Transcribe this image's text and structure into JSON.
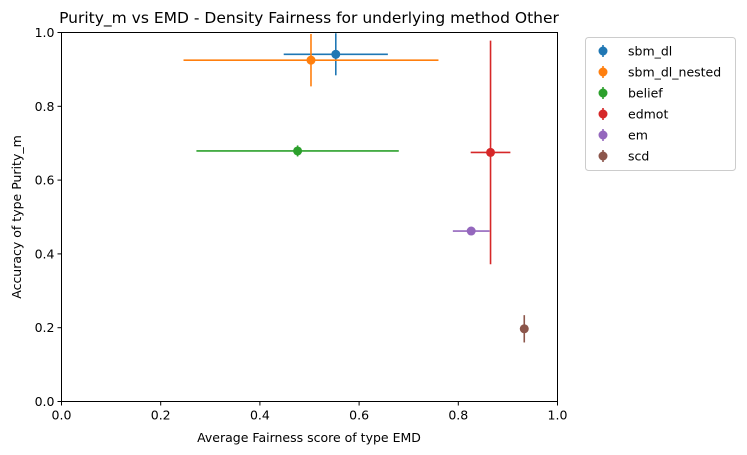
{
  "chart_data": {
    "type": "scatter",
    "title": "Purity_m vs EMD - Density Fairness for underlying method Other",
    "xlabel": "Average Fairness score of type EMD",
    "ylabel": "Accuracy of type Purity_m",
    "xlim": [
      0.0,
      1.0
    ],
    "ylim": [
      0.0,
      1.0
    ],
    "xticks": [
      "0.0",
      "0.2",
      "0.4",
      "0.6",
      "0.8",
      "1.0"
    ],
    "yticks": [
      "0.0",
      "0.2",
      "0.4",
      "0.6",
      "0.8",
      "1.0"
    ],
    "grid": false,
    "legend_position": "outside-upper-right",
    "series": [
      {
        "name": "sbm_dl",
        "color": "#1f77b4",
        "x": 0.553,
        "y": 0.941,
        "xerr": 0.105,
        "yerr": 0.057
      },
      {
        "name": "sbm_dl_nested",
        "color": "#ff7f0e",
        "x": 0.503,
        "y": 0.925,
        "xerr": 0.257,
        "yerr": 0.071
      },
      {
        "name": "belief",
        "color": "#2ca02c",
        "x": 0.476,
        "y": 0.679,
        "xerr": 0.204,
        "yerr": 0.015
      },
      {
        "name": "edmot",
        "color": "#d62728",
        "x": 0.865,
        "y": 0.675,
        "xerr": 0.04,
        "yerr": 0.303
      },
      {
        "name": "em",
        "color": "#9467bd",
        "x": 0.826,
        "y": 0.462,
        "xerr": 0.037,
        "yerr": 0.0
      },
      {
        "name": "scd",
        "color": "#8c564b",
        "x": 0.933,
        "y": 0.197,
        "xerr": 0.008,
        "yerr": 0.037
      }
    ]
  }
}
